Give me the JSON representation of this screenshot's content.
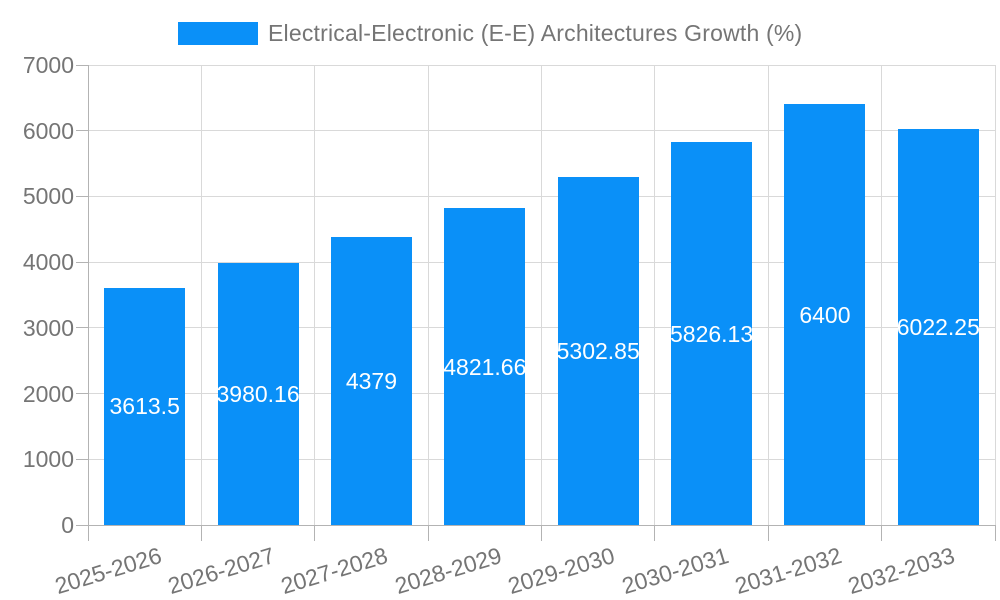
{
  "chart_data": {
    "type": "bar",
    "title": "Electrical-Electronic (E-E) Architectures Growth (%)",
    "categories": [
      "2025-2026",
      "2026-2027",
      "2027-2028",
      "2028-2029",
      "2029-2030",
      "2030-2031",
      "2031-2032",
      "2032-2033"
    ],
    "values": [
      3613.5,
      3980.16,
      4379,
      4821.66,
      5302.85,
      5826.13,
      6400,
      6022.25
    ],
    "value_labels": [
      "3613.5",
      "3980.16",
      "4379",
      "4821.66",
      "5302.85",
      "5826.13",
      "6400",
      "6022.25"
    ],
    "yticks": [
      "0",
      "1000",
      "2000",
      "3000",
      "4000",
      "5000",
      "6000",
      "7000"
    ],
    "ylim": [
      0,
      7000
    ],
    "ytick_interval": 1000,
    "xlabel": "",
    "ylabel": "",
    "grid": "on",
    "legend_position": "top-center",
    "colors": {
      "bar": "#0a90f8",
      "value_label_text": "#ffffff",
      "axis_text": "#757575",
      "gridline": "#d9d9d9",
      "axis_line": "#b3b3b3",
      "background": "#ffffff"
    }
  }
}
